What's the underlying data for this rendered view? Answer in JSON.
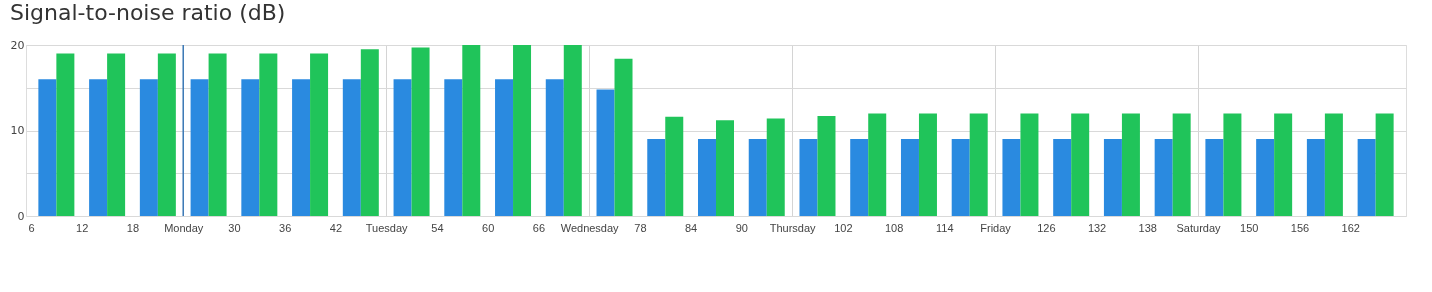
{
  "chart_data": {
    "type": "bar",
    "title": "Signal-to-noise ratio (dB)",
    "x": [
      9,
      15,
      21,
      27,
      33,
      39,
      45,
      51,
      57,
      63,
      69,
      75,
      81,
      87,
      93,
      99,
      105,
      111,
      117,
      123,
      129,
      135,
      141,
      147,
      153,
      159,
      165
    ],
    "series": [
      {
        "color": "#2a8ae0",
        "values": [
          16,
          16,
          16,
          16,
          16,
          16,
          16,
          16,
          16,
          16,
          16,
          14.8,
          9,
          9,
          9,
          9,
          9,
          9,
          9,
          9,
          9,
          9,
          9,
          9,
          9,
          9,
          9
        ]
      },
      {
        "color": "#20c45a",
        "values": [
          19,
          19,
          19,
          19,
          19,
          19,
          19.5,
          19.7,
          20,
          20,
          20,
          18.4,
          11.6,
          11.2,
          11.4,
          11.7,
          12,
          12,
          12,
          12,
          12,
          12,
          12,
          12,
          12,
          12,
          12
        ]
      }
    ],
    "xlim": [
      6,
      168
    ],
    "xticks": [
      6,
      12,
      18,
      {
        "value": 24,
        "label": "Monday"
      },
      30,
      36,
      42,
      {
        "value": 48,
        "label": "Tuesday"
      },
      54,
      60,
      66,
      {
        "value": 72,
        "label": "Wednesday"
      },
      78,
      84,
      90,
      {
        "value": 96,
        "label": "Thursday"
      },
      102,
      108,
      114,
      {
        "value": 120,
        "label": "Friday"
      },
      126,
      132,
      138,
      {
        "value": 144,
        "label": "Saturday"
      },
      150,
      156,
      162
    ],
    "ylim": [
      0,
      20
    ],
    "yticks": [
      0,
      {
        "value": 5,
        "label": null
      },
      10,
      {
        "value": 15,
        "label": null
      },
      20
    ],
    "grid": true,
    "ref_lines": [
      {
        "axis": "x",
        "value": 24,
        "color": "#3a78b5"
      }
    ]
  }
}
